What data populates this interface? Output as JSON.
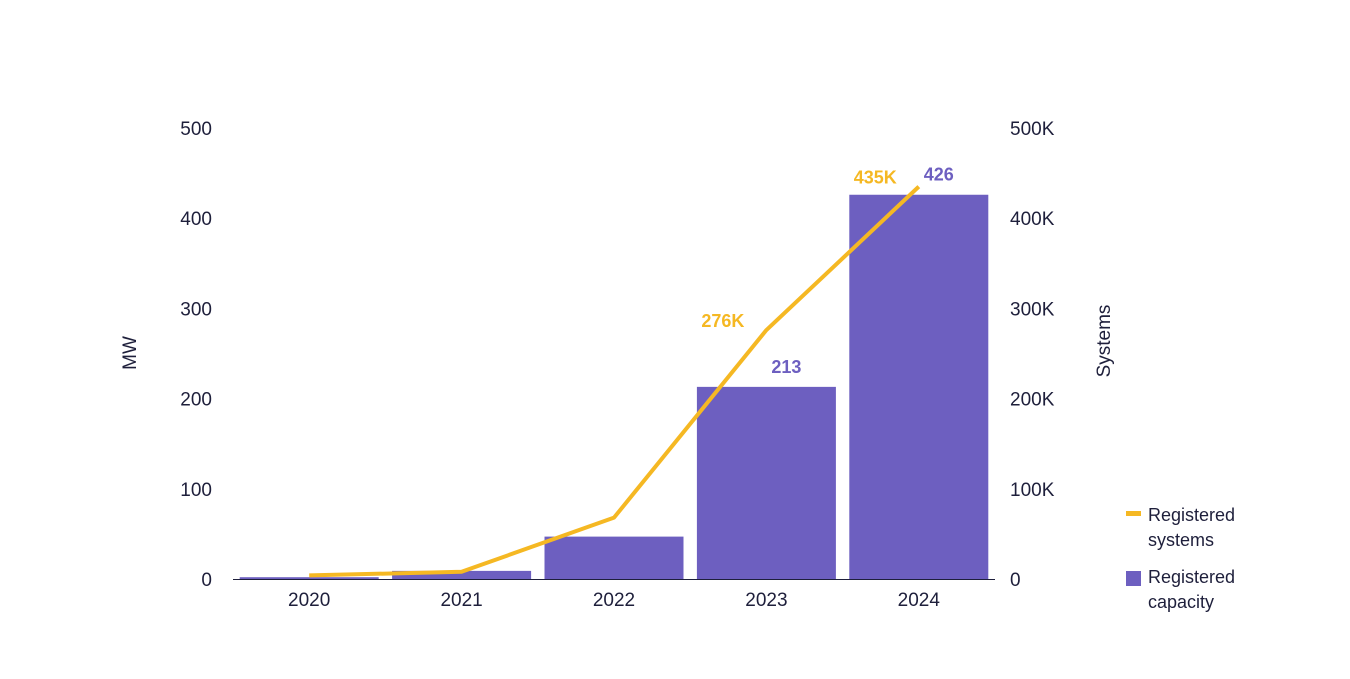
{
  "colors": {
    "bar": "#6d5fc0",
    "line": "#f5b823",
    "axis_text": "#1e1f3b",
    "baseline": "#1e1f3b"
  },
  "chart_data": {
    "type": "bar",
    "categories": [
      "2020",
      "2021",
      "2022",
      "2023",
      "2024"
    ],
    "ylabel": "MW",
    "y2label": "Systems",
    "ylim": [
      0,
      500
    ],
    "y2lim": [
      0,
      500000
    ],
    "yticks": [
      "0",
      "100",
      "200",
      "300",
      "400",
      "500"
    ],
    "y2ticks": [
      "0",
      "100K",
      "200K",
      "300K",
      "400K",
      "500K"
    ],
    "grid": false,
    "legend_position": "bottom-right",
    "series": [
      {
        "name": "Registered capacity",
        "type": "bar",
        "axis": "left",
        "values": [
          2,
          9,
          47,
          213,
          426
        ],
        "labels": [
          "",
          "",
          "",
          "213",
          "426"
        ]
      },
      {
        "name": "Registered systems",
        "type": "line",
        "axis": "right",
        "values": [
          4000,
          8000,
          68000,
          276000,
          435000
        ],
        "labels": [
          "",
          "",
          "",
          "276K",
          "435K"
        ]
      }
    ]
  },
  "legend": {
    "items": [
      {
        "line1": "Registered",
        "line2": "systems",
        "kind": "line"
      },
      {
        "line1": "Registered",
        "line2": "capacity",
        "kind": "box"
      }
    ]
  }
}
